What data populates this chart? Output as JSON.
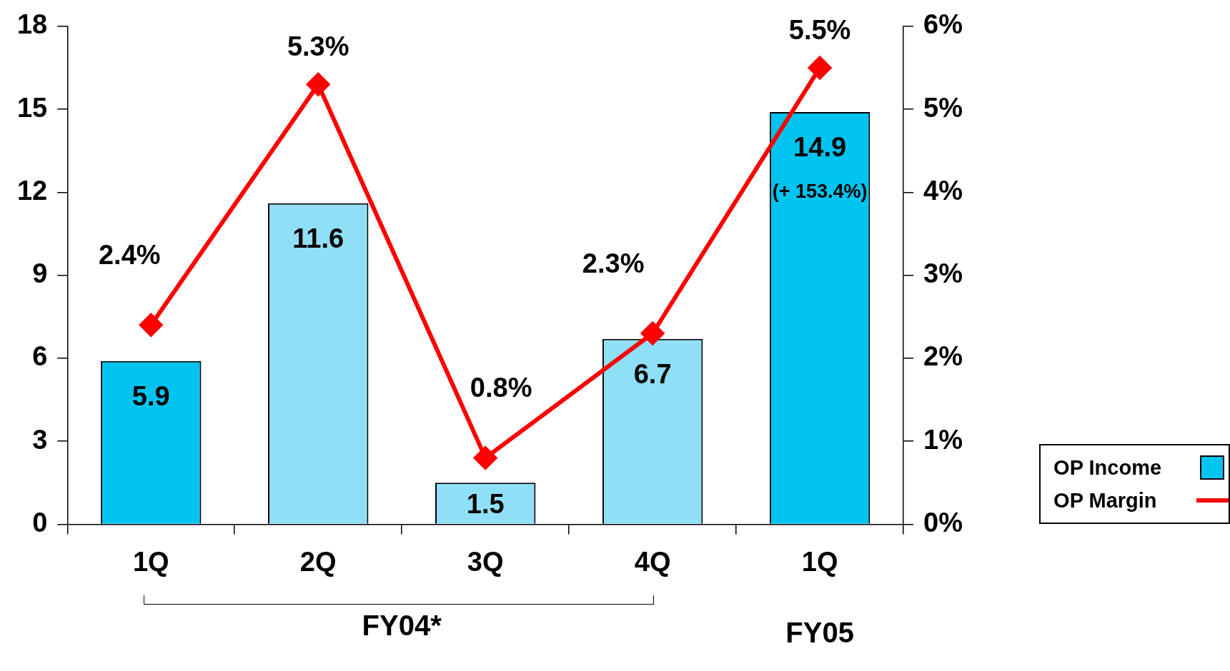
{
  "chart_data": {
    "type": "bar",
    "categories": [
      "1Q",
      "2Q",
      "3Q",
      "4Q",
      "1Q"
    ],
    "series": [
      {
        "name": "OP Income",
        "colors": [
          "#00c4f0",
          "#8fe0f7",
          "#8fe0f7",
          "#8fe0f7",
          "#00c4f0"
        ],
        "color": "#00c4f0",
        "values": [
          5.9,
          11.6,
          1.5,
          6.7,
          14.9
        ],
        "value_labels": [
          "5.9",
          "11.6",
          "1.5",
          "6.7",
          "14.9 (+ 153.4%)"
        ]
      },
      {
        "name": "OP Margin",
        "type": "line",
        "axis": "y2",
        "color": "#ff0000",
        "values": [
          2.4,
          5.3,
          0.8,
          2.3,
          5.5
        ],
        "value_labels": [
          "2.4%",
          "5.3%",
          "0.8%",
          "2.3%",
          "5.5%"
        ]
      }
    ],
    "ylim": [
      0,
      18
    ],
    "yticks": [
      0,
      3,
      6,
      9,
      12,
      15,
      18
    ],
    "y2lim": [
      0,
      6
    ],
    "y2ticks": [
      {
        "value": 0,
        "label": "0%"
      },
      {
        "value": 1,
        "label": "1%"
      },
      {
        "value": 2,
        "label": "2%"
      },
      {
        "value": 3,
        "label": "3%"
      },
      {
        "value": 4,
        "label": "4%"
      },
      {
        "value": 5,
        "label": "5%"
      },
      {
        "value": 6,
        "label": "6%"
      }
    ],
    "annotations": [
      "FY04*",
      "FY05"
    ],
    "marker": "diamond",
    "line_style": "solid",
    "grid": false,
    "legend": "bottom right"
  }
}
